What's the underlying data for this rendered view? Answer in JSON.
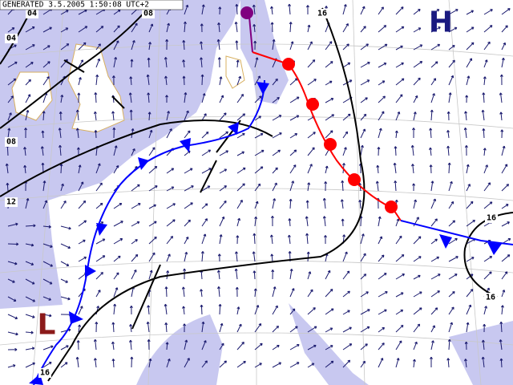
{
  "header": {
    "generated": "GENERATED 3.5.2005 1:50:08 UTC+2"
  },
  "pressure_centers": [
    {
      "label": "H"
    },
    {
      "label": "L"
    }
  ],
  "isobar_labels": [
    "04",
    "08",
    "16",
    "04",
    "08",
    "12",
    "16",
    "16",
    "16"
  ]
}
